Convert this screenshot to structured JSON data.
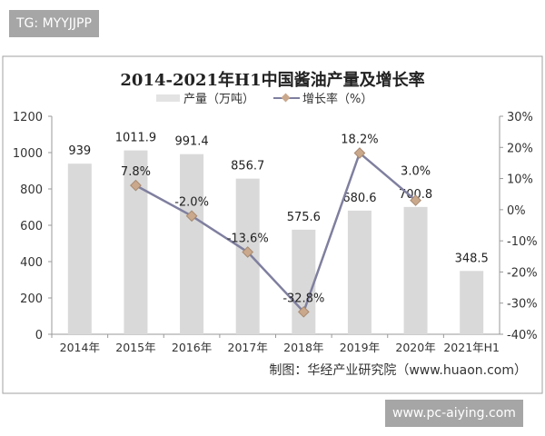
{
  "watermark_top": "TG: MYYJJPP",
  "watermark_bottom": "www.pc-aiying.com",
  "chart_data": {
    "type": "bar+line",
    "title": "2014-2021年H1中国酱油产量及增长率",
    "categories": [
      "2014年",
      "2015年",
      "2016年",
      "2017年",
      "2018年",
      "2019年",
      "2020年",
      "2021年H1"
    ],
    "series": [
      {
        "name": "产量（万吨）",
        "type": "bar",
        "axis": "left",
        "color": "#d9d9d9",
        "values": [
          939,
          1011.9,
          991.4,
          856.7,
          575.6,
          680.6,
          700.8,
          348.5
        ],
        "labels": [
          "939",
          "1011.9",
          "991.4",
          "856.7",
          "575.6",
          "680.6",
          "700.8",
          "348.5"
        ]
      },
      {
        "name": "增长率（%）",
        "type": "line",
        "axis": "right",
        "color": "#7f7f9f",
        "marker_color": "#c9a88c",
        "values": [
          null,
          7.8,
          -2.0,
          -13.6,
          -32.8,
          18.2,
          3.0,
          null
        ],
        "labels": [
          null,
          "7.8%",
          "-2.0%",
          "-13.6%",
          "-32.8%",
          "18.2%",
          "3.0%",
          null
        ]
      }
    ],
    "y_left": {
      "ylim": [
        0,
        1200
      ],
      "ticks": [
        "0",
        "200",
        "400",
        "600",
        "800",
        "1000",
        "1200"
      ]
    },
    "y_right": {
      "ylim": [
        -40,
        30
      ],
      "ticks": [
        "-40%",
        "-30%",
        "-20%",
        "-10%",
        "0%",
        "10%",
        "20%",
        "30%"
      ]
    },
    "grid": false,
    "legend": "top",
    "source": "制图：华经产业研究院（www.huaon.com）"
  }
}
